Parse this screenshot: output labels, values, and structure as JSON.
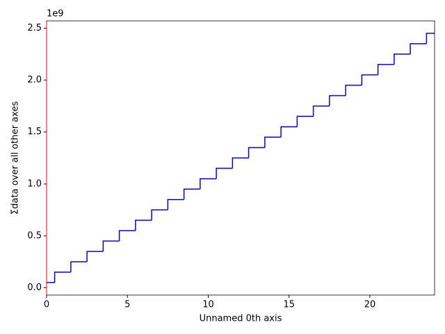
{
  "chart_data": {
    "type": "step",
    "x_label": "Unnamed 0th axis",
    "y_label": "Σdata over all other axes",
    "y_offset_text": "1e9",
    "x": [
      0,
      1,
      2,
      3,
      4,
      5,
      6,
      7,
      8,
      9,
      10,
      11,
      12,
      13,
      14,
      15,
      16,
      17,
      18,
      19,
      20,
      21,
      22,
      23,
      24
    ],
    "series": [
      {
        "color": "#0000ff",
        "values": [
          0.05,
          0.15,
          0.25,
          0.35,
          0.45,
          0.55,
          0.65,
          0.75,
          0.85,
          0.95,
          1.05,
          1.15,
          1.25,
          1.35,
          1.45,
          1.55,
          1.65,
          1.75,
          1.85,
          1.95,
          2.05,
          2.15,
          2.25,
          2.35,
          2.45
        ]
      }
    ],
    "xlim": [
      0,
      24
    ],
    "ylim": [
      -0.07,
      2.57
    ],
    "xticks": [
      0,
      5,
      10,
      15,
      20
    ],
    "yticks": [
      {
        "value": 0,
        "label": "0.0"
      },
      {
        "value": 0.5,
        "label": "0.5"
      },
      {
        "value": 1,
        "label": "1.0"
      },
      {
        "value": 1.5,
        "label": "1.5"
      },
      {
        "value": 2,
        "label": "2.0"
      },
      {
        "value": 2.5,
        "label": "2.5"
      }
    ],
    "left_spine_color": "#ff0000"
  }
}
